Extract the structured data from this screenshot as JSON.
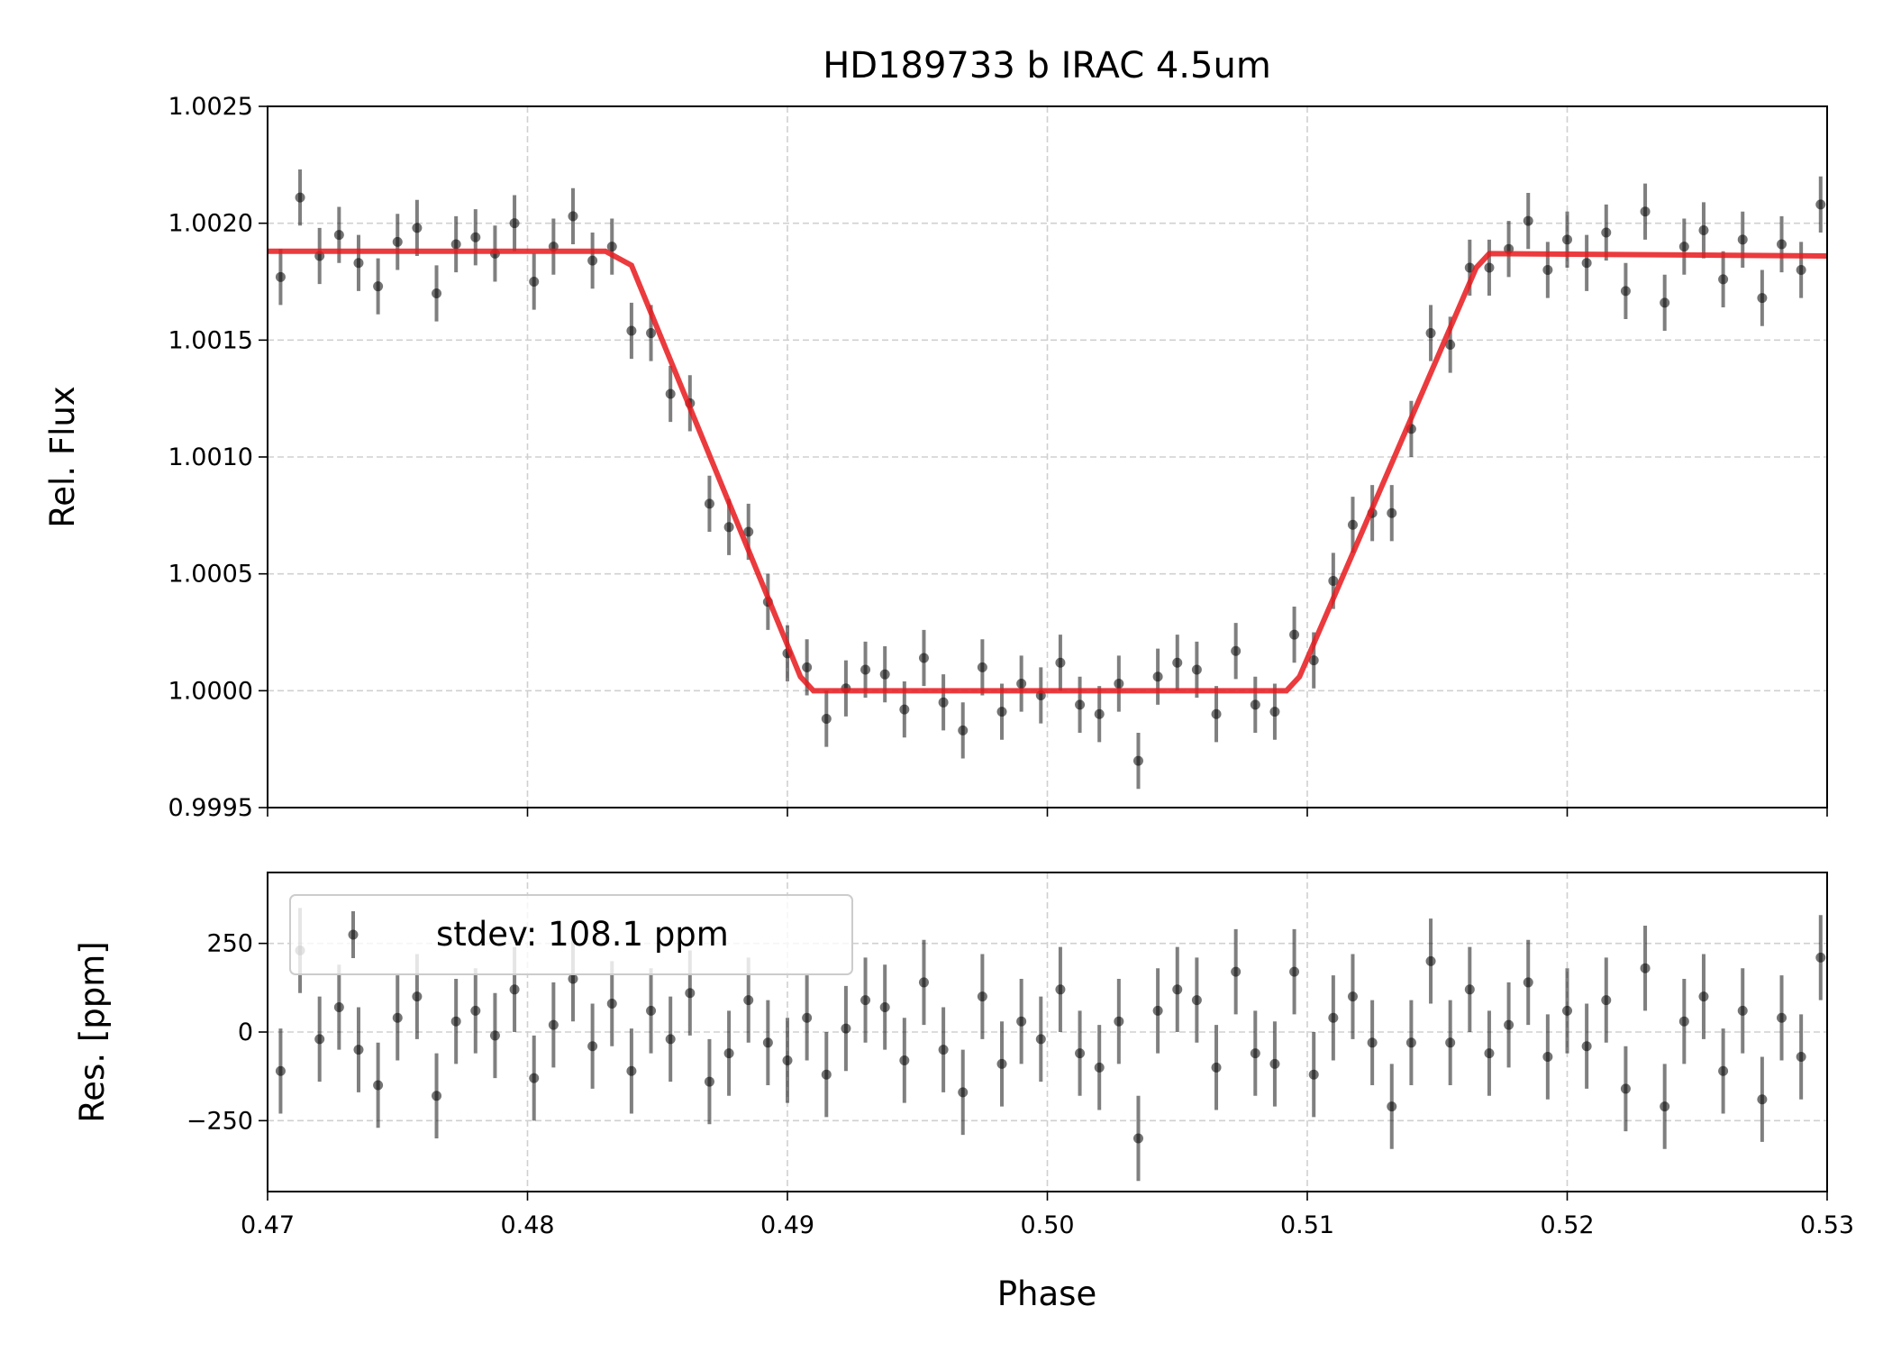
{
  "chart_data": [
    {
      "type": "errorbar",
      "title": "HD189733 b IRAC 4.5um",
      "ylabel": "Rel. Flux",
      "x": [
        0.4705,
        0.47125,
        0.472,
        0.47275,
        0.4735,
        0.47425,
        0.475,
        0.47575,
        0.4765,
        0.47725,
        0.478,
        0.47875,
        0.4795,
        0.48025,
        0.481,
        0.48175,
        0.4825,
        0.48325,
        0.484,
        0.48475,
        0.4855,
        0.48625,
        0.487,
        0.48775,
        0.4885,
        0.48925,
        0.49,
        0.49075,
        0.4915,
        0.49225,
        0.493,
        0.49375,
        0.4945,
        0.49525,
        0.496,
        0.49675,
        0.4975,
        0.49825,
        0.499,
        0.49975,
        0.5005,
        0.50125,
        0.502,
        0.50275,
        0.5035,
        0.50425,
        0.505,
        0.50575,
        0.5065,
        0.50725,
        0.508,
        0.50875,
        0.5095,
        0.51025,
        0.511,
        0.51175,
        0.5125,
        0.51325,
        0.514,
        0.51475,
        0.5155,
        0.51625,
        0.517,
        0.51775,
        0.5185,
        0.51925,
        0.52,
        0.52075,
        0.5215,
        0.52225,
        0.523,
        0.52375,
        0.5245,
        0.52525,
        0.526,
        0.52675,
        0.5275,
        0.52825,
        0.529,
        0.52975
      ],
      "series": [
        {
          "color": "#000000",
          "error": 0.00012,
          "values": [
            1.00177,
            1.00211,
            1.00186,
            1.00195,
            1.00183,
            1.00173,
            1.00192,
            1.00198,
            1.0017,
            1.00191,
            1.00194,
            1.00187,
            1.002,
            1.00175,
            1.0019,
            1.00203,
            1.00184,
            1.0019,
            1.00154,
            1.00153,
            1.00127,
            1.00123,
            1.0008,
            1.0007,
            1.00068,
            1.00038,
            1.00016,
            1.0001,
            0.99988,
            1.00001,
            1.00009,
            1.00007,
            0.99992,
            1.00014,
            0.99995,
            0.99983,
            1.0001,
            0.99991,
            1.00003,
            0.99998,
            1.00012,
            0.99994,
            0.9999,
            1.00003,
            0.9997,
            1.00006,
            1.00012,
            1.00009,
            0.9999,
            1.00017,
            0.99994,
            0.99991,
            1.00024,
            1.00013,
            1.00047,
            1.00071,
            1.00076,
            1.00076,
            1.00112,
            1.00153,
            1.00148,
            1.00181,
            1.00181,
            1.00189,
            1.00201,
            1.0018,
            1.00193,
            1.00183,
            1.00196,
            1.00171,
            1.00205,
            1.00166,
            1.0019,
            1.00197,
            1.00176,
            1.00193,
            1.00168,
            1.00191,
            1.0018,
            1.00208
          ]
        }
      ],
      "model": {
        "color": "#e8191c",
        "x": [
          0.47,
          0.483,
          0.484,
          0.4905,
          0.491,
          0.5092,
          0.5097,
          0.5165,
          0.517,
          0.53
        ],
        "values": [
          1.00188,
          1.00188,
          1.00182,
          1.00006,
          1.0,
          1.0,
          1.00006,
          1.00181,
          1.00187,
          1.00186
        ]
      },
      "ylim": [
        0.9995,
        1.0025
      ],
      "yticks": [
        0.9995,
        {
          "value": 1.0,
          "label": "1.0000"
        },
        1.0005,
        {
          "value": 1.001,
          "label": "1.0010"
        },
        1.0015,
        {
          "value": 1.002,
          "label": "1.0020"
        },
        1.0025
      ],
      "grid": true
    },
    {
      "type": "errorbar",
      "ylabel": "Res. [ppm]",
      "xlabel": "Phase",
      "series": [
        {
          "name": "stdev: 108.1 ppm",
          "color": "#000000",
          "error": 120,
          "values": [
            -110,
            230,
            -20,
            70,
            -50,
            -150,
            40,
            100,
            -180,
            30,
            60,
            -10,
            120,
            -130,
            20,
            150,
            -40,
            80,
            -110,
            60,
            -20,
            110,
            -140,
            -60,
            90,
            -30,
            -80,
            40,
            -120,
            10,
            90,
            70,
            -80,
            140,
            -50,
            -170,
            100,
            -90,
            30,
            -20,
            120,
            -60,
            -100,
            30,
            -300,
            60,
            120,
            90,
            -100,
            170,
            -60,
            -90,
            170,
            -120,
            40,
            100,
            -30,
            -210,
            -30,
            200,
            -30,
            120,
            -60,
            20,
            140,
            -70,
            60,
            -40,
            90,
            -160,
            180,
            -210,
            30,
            100,
            -110,
            60,
            -190,
            40,
            -70,
            210
          ]
        }
      ],
      "xlim": [
        0.47,
        0.53
      ],
      "xticks": [
        0.47,
        0.48,
        0.49,
        {
          "value": 0.5,
          "label": "0.50"
        },
        0.51,
        0.52,
        0.53
      ],
      "ylim": [
        -450,
        450
      ],
      "yticks": [
        {
          "value": -250,
          "label": "−250"
        },
        0,
        250
      ],
      "legend": "upper left",
      "grid": true
    }
  ]
}
